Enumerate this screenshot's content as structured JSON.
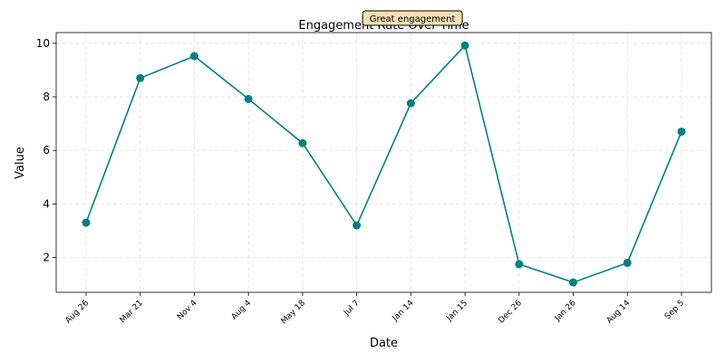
{
  "chart_data": {
    "type": "line",
    "title": "Engagement Rate Over Time",
    "xlabel": "Date",
    "ylabel": "Value",
    "categories": [
      "Aug 26",
      "Mar 21",
      "Nov 4",
      "Aug 4",
      "May 18",
      "Jul 7",
      "Jan 14",
      "Jan 15",
      "Dec 26",
      "Jan 26",
      "Aug 14",
      "Sep 5"
    ],
    "series": [
      {
        "values": [
          3.3,
          8.7,
          9.52,
          7.92,
          6.27,
          3.2,
          7.76,
          9.92,
          1.75,
          1.07,
          1.8,
          6.7
        ],
        "color": "#008080"
      }
    ],
    "ylim": [
      0.7,
      10.4
    ],
    "yticks": [
      2,
      4,
      6,
      8,
      10
    ],
    "grid": true,
    "annotation": {
      "text": "Great engagement",
      "category": "Jan 15"
    }
  }
}
